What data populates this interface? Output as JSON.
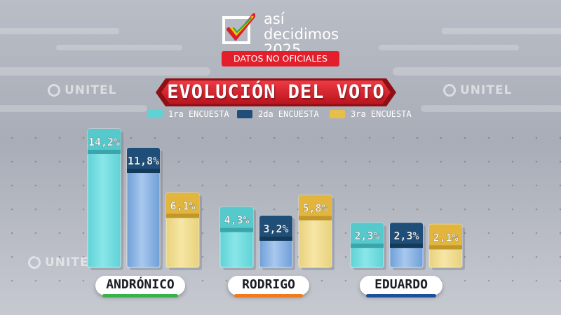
{
  "logo": {
    "line1": "así",
    "line2": "decidimos",
    "line3": "2025"
  },
  "disclaimer": "DATOS NO OFICIALES",
  "watermark": "UNITEL",
  "colors": {
    "s1": "#5fd2d6",
    "s2": "#1f4f78",
    "s3": "#e7be4a",
    "banner": "#d8202b"
  },
  "chart_data": {
    "type": "bar",
    "title": "EVOLUCIÓN DEL VOTO",
    "categories": [
      "ANDRÓNICO",
      "RODRIGO",
      "EDUARDO"
    ],
    "category_colors": [
      "#38b24a",
      "#f07a1e",
      "#1d4f9f"
    ],
    "series": [
      {
        "name": "1ra ENCUESTA",
        "values": [
          14.2,
          4.3,
          2.3
        ],
        "labels": [
          "14,2%",
          "4,3%",
          "2,3%"
        ]
      },
      {
        "name": "2da ENCUESTA",
        "values": [
          11.8,
          3.2,
          2.3
        ],
        "labels": [
          "11,8%",
          "3,2%",
          "2,3%"
        ]
      },
      {
        "name": "3ra ENCUESTA",
        "values": [
          6.1,
          5.8,
          2.1
        ],
        "labels": [
          "6,1%",
          "5,8%",
          "2,1%"
        ]
      }
    ]
  }
}
